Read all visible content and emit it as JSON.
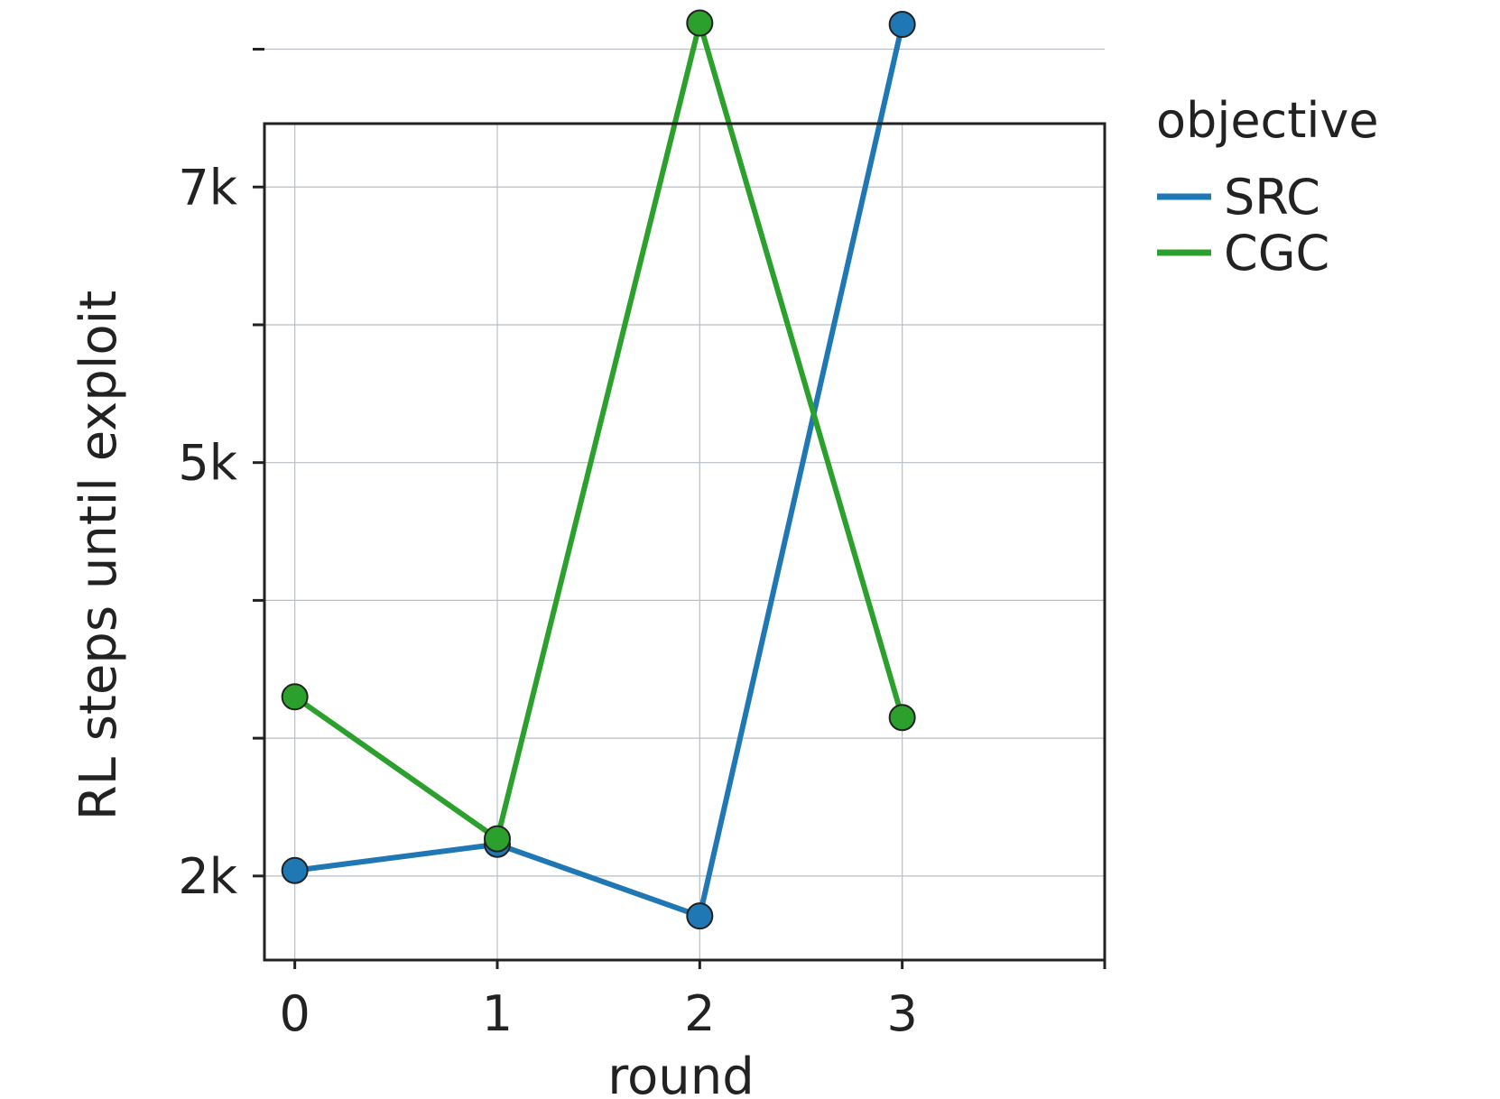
{
  "chart_data": {
    "type": "line",
    "xlabel": "round",
    "ylabel": "RL steps until exploit",
    "x": [
      0,
      1,
      2,
      3
    ],
    "x_ticks": [
      0,
      1,
      2,
      3
    ],
    "x_tick_labels": [
      "0",
      "1",
      "2",
      "3"
    ],
    "xlim": [
      -0.15,
      4.0
    ],
    "y_ticks": [
      2000,
      3000,
      4000,
      5000,
      6000,
      7000,
      8000
    ],
    "y_tick_labels": [
      "2k",
      "",
      "",
      "5k",
      "",
      "7k",
      ""
    ],
    "ylim": [
      1390,
      7460
    ],
    "grid": true,
    "legend": {
      "title": "objective",
      "position": "outside-top-right"
    },
    "series": [
      {
        "name": "SRC",
        "color": "#1f77b4",
        "values": [
          2040,
          2230,
          1710,
          8180
        ]
      },
      {
        "name": "CGC",
        "color": "#2ca02c",
        "values": [
          3300,
          2270,
          8190,
          3150
        ]
      }
    ]
  }
}
